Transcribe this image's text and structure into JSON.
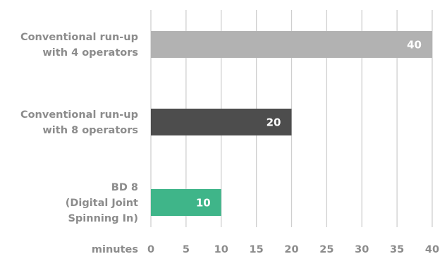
{
  "chart_data": {
    "type": "bar",
    "orientation": "horizontal",
    "categories": [
      [
        "Conventional run-up",
        "with 4 operators"
      ],
      [
        "Conventional run-up",
        "with 8 operators"
      ],
      [
        "BD 8",
        "(Digital Joint",
        "Spinning In)"
      ]
    ],
    "values": [
      40,
      20,
      10
    ],
    "colors": [
      "#b2b2b2",
      "#4d4d4d",
      "#3fb589"
    ],
    "data_labels": [
      "40",
      "20",
      "10"
    ],
    "xlabel": "minutes",
    "ylabel": "",
    "xlim": [
      0,
      40
    ],
    "xticks": [
      0,
      5,
      10,
      15,
      20,
      25,
      30,
      35,
      40
    ],
    "grid": "vertical"
  }
}
